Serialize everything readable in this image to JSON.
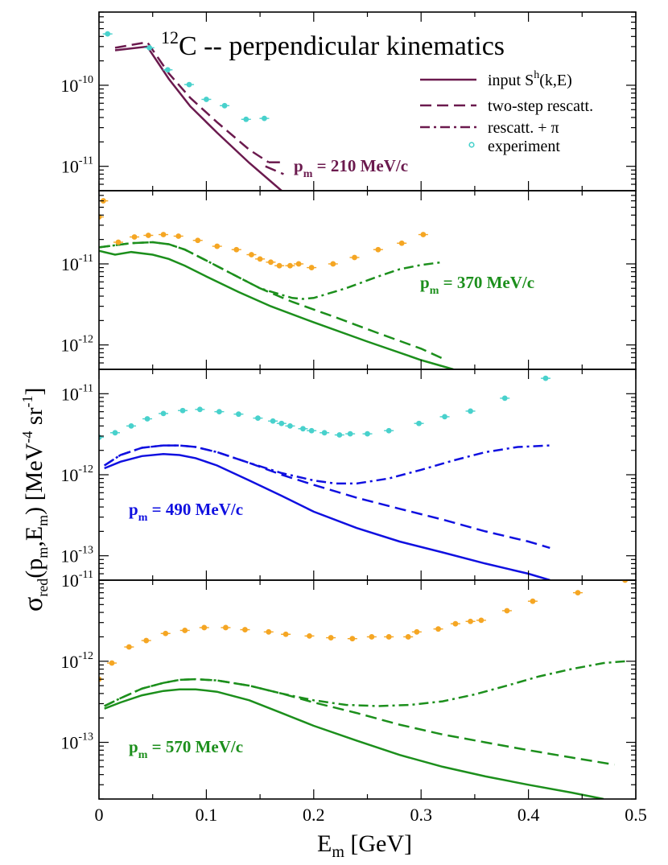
{
  "chart_data": {
    "type": "line",
    "title": {
      "superscript": "12",
      "text": "C -- perpendicular kinematics"
    },
    "xlabel": {
      "main": "E",
      "sub": "m",
      "rest": " [GeV]"
    },
    "ylabel": {
      "sigma": "σ",
      "sub1": "red",
      "mid": "(p",
      "sub2": "m",
      "comma": ",E",
      "sub3": "m",
      "close": ") [MeV",
      "sup1": "-4",
      "sr": " sr",
      "sup2": "-1",
      "end": "]"
    },
    "xlim": [
      0,
      0.5
    ],
    "xticks": [
      0,
      0.1,
      0.2,
      0.3,
      0.4,
      0.5
    ],
    "xtick_labels": [
      "0",
      "0.1",
      "0.2",
      "0.3",
      "0.4",
      "0.5"
    ],
    "legend": {
      "position": "top-right",
      "entries": [
        {
          "style": "solid",
          "label": "input S",
          "sup": "h",
          "after": "(k,E)"
        },
        {
          "style": "dashed",
          "label": "two-step rescatt.",
          "sup": "",
          "after": ""
        },
        {
          "style": "dashdot",
          "label": "rescatt. + π",
          "sup": "",
          "after": ""
        },
        {
          "style": "marker",
          "label": "experiment",
          "sup": "",
          "after": ""
        }
      ]
    },
    "panels": [
      {
        "pm_label": {
          "main": "p",
          "sub": "m",
          "rest": " = 210 MeV/c"
        },
        "color": "#6b1a4e",
        "marker_color": "#48d1cc",
        "ylim": [
          5e-12,
          8e-10
        ],
        "yticks": [
          {
            "value": 1e-10,
            "base": "10",
            "exp": "-10"
          },
          {
            "value": 1e-11,
            "base": "10",
            "exp": "-11"
          }
        ],
        "solid": {
          "x": [
            0.015,
            0.045,
            0.065,
            0.085,
            0.11,
            0.14,
            0.17
          ],
          "y": [
            2.7e-10,
            3e-10,
            1.2e-10,
            5.5e-11,
            2.6e-11,
            1.1e-11,
            5e-12
          ]
        },
        "dashed": {
          "x": [
            0.015,
            0.045,
            0.065,
            0.085,
            0.11,
            0.14,
            0.158
          ],
          "y": [
            2.9e-10,
            3.4e-10,
            1.4e-10,
            7e-11,
            3.5e-11,
            1.6e-11,
            1.12e-11
          ]
        },
        "dashed_tail": {
          "x": [
            0.158,
            0.172
          ],
          "y": [
            1.12e-11,
            1.12e-11
          ]
        },
        "dashed_tail2": {
          "x": [
            0.155,
            0.172
          ],
          "y": [
            1e-11,
            8e-12
          ]
        },
        "dashdot": {
          "x": [],
          "y": []
        },
        "experiment": {
          "x": [
            0.008,
            0.047,
            0.064,
            0.084,
            0.1,
            0.117,
            0.137,
            0.154
          ],
          "y": [
            4.3e-10,
            2.9e-10,
            1.55e-10,
            1.02e-10,
            6.7e-11,
            5.6e-11,
            3.8e-11,
            3.9e-11
          ]
        }
      },
      {
        "pm_label": {
          "main": "p",
          "sub": "m",
          "rest": " = 370 MeV/c"
        },
        "color": "#1c8f1c",
        "marker_color": "#f5a623",
        "ylim": [
          5e-13,
          8e-11
        ],
        "yticks": [
          {
            "value": 1e-11,
            "base": "10",
            "exp": "-11"
          },
          {
            "value": 1e-12,
            "base": "10",
            "exp": "-12"
          }
        ],
        "solid": {
          "x": [
            0.0,
            0.015,
            0.03,
            0.05,
            0.065,
            0.08,
            0.1,
            0.13,
            0.16,
            0.2,
            0.25,
            0.3,
            0.33
          ],
          "y": [
            1.45e-11,
            1.3e-11,
            1.4e-11,
            1.3e-11,
            1.15e-11,
            9.5e-12,
            7e-12,
            4.5e-12,
            3e-12,
            1.9e-12,
            1.1e-12,
            6.5e-13,
            5e-13
          ]
        },
        "dashed": {
          "x": [
            0.0,
            0.03,
            0.05,
            0.065,
            0.08,
            0.1,
            0.12,
            0.15,
            0.18,
            0.22,
            0.26,
            0.3,
            0.32
          ],
          "y": [
            1.6e-11,
            1.8e-11,
            1.85e-11,
            1.75e-11,
            1.5e-11,
            1.1e-11,
            8e-12,
            5e-12,
            3.4e-12,
            2.2e-12,
            1.4e-12,
            9e-13,
            6.8e-13
          ]
        },
        "dashdot": {
          "x": [
            0.0,
            0.03,
            0.05,
            0.065,
            0.08,
            0.1,
            0.12,
            0.15,
            0.18,
            0.19,
            0.2,
            0.23,
            0.26,
            0.28,
            0.3,
            0.32
          ],
          "y": [
            1.6e-11,
            1.8e-11,
            1.85e-11,
            1.75e-11,
            1.5e-11,
            1.1e-11,
            8e-12,
            5e-12,
            3.8e-12,
            3.7e-12,
            3.8e-12,
            5e-12,
            7e-12,
            8.6e-12,
            9.7e-12,
            1.05e-11
          ]
        },
        "experiment": {
          "x": [
            0.004,
            0.0,
            0.018,
            0.033,
            0.046,
            0.06,
            0.074,
            0.092,
            0.11,
            0.128,
            0.142,
            0.15,
            0.16,
            0.168,
            0.178,
            0.186,
            0.198,
            0.218,
            0.238,
            0.26,
            0.282,
            0.302
          ],
          "y": [
            6e-11,
            3.8e-11,
            1.85e-11,
            2.15e-11,
            2.25e-11,
            2.3e-11,
            2.2e-11,
            1.95e-11,
            1.65e-11,
            1.5e-11,
            1.3e-11,
            1.15e-11,
            1.05e-11,
            9.5e-12,
            9.5e-12,
            1e-11,
            9e-12,
            1e-11,
            1.2e-11,
            1.5e-11,
            1.8e-11,
            2.3e-11
          ]
        }
      },
      {
        "pm_label": {
          "main": "p",
          "sub": "m",
          "rest": " = 490 MeV/c"
        },
        "color": "#1010e0",
        "marker_color": "#48d1cc",
        "ylim": [
          5e-14,
          2e-11
        ],
        "yticks": [
          {
            "value": 1e-11,
            "base": "10",
            "exp": "-11"
          },
          {
            "value": 1e-12,
            "base": "10",
            "exp": "-12"
          },
          {
            "value": 1e-13,
            "base": "10",
            "exp": "-13"
          }
        ],
        "solid": {
          "x": [
            0.005,
            0.02,
            0.04,
            0.06,
            0.075,
            0.09,
            0.11,
            0.14,
            0.17,
            0.2,
            0.24,
            0.28,
            0.32,
            0.36,
            0.4,
            0.42
          ],
          "y": [
            1.2e-12,
            1.45e-12,
            1.7e-12,
            1.8e-12,
            1.75e-12,
            1.6e-12,
            1.3e-12,
            8.5e-13,
            5.5e-13,
            3.5e-13,
            2.2e-13,
            1.5e-13,
            1.1e-13,
            8e-14,
            6e-14,
            5e-14
          ]
        },
        "dashed": {
          "x": [
            0.005,
            0.02,
            0.04,
            0.06,
            0.075,
            0.09,
            0.11,
            0.14,
            0.17,
            0.2,
            0.24,
            0.28,
            0.32,
            0.36,
            0.4,
            0.42
          ],
          "y": [
            1.3e-12,
            1.75e-12,
            2.15e-12,
            2.3e-12,
            2.3e-12,
            2.2e-12,
            1.9e-12,
            1.4e-12,
            1e-12,
            7.5e-13,
            5.2e-13,
            3.8e-13,
            2.8e-13,
            2e-13,
            1.5e-13,
            1.25e-13
          ]
        },
        "dashdot": {
          "x": [
            0.005,
            0.02,
            0.04,
            0.06,
            0.075,
            0.09,
            0.11,
            0.14,
            0.17,
            0.2,
            0.22,
            0.24,
            0.27,
            0.3,
            0.33,
            0.36,
            0.39,
            0.42
          ],
          "y": [
            1.3e-12,
            1.75e-12,
            2.15e-12,
            2.3e-12,
            2.3e-12,
            2.2e-12,
            1.9e-12,
            1.4e-12,
            1.05e-12,
            8.5e-13,
            7.8e-13,
            7.8e-13,
            9e-13,
            1.15e-12,
            1.5e-12,
            1.9e-12,
            2.2e-12,
            2.3e-12
          ]
        },
        "experiment": {
          "x": [
            0.0,
            0.015,
            0.03,
            0.045,
            0.06,
            0.078,
            0.094,
            0.112,
            0.13,
            0.148,
            0.162,
            0.17,
            0.178,
            0.19,
            0.198,
            0.21,
            0.224,
            0.234,
            0.25,
            0.27,
            0.298,
            0.322,
            0.346,
            0.378,
            0.416
          ],
          "y": [
            2.9e-12,
            3.3e-12,
            4e-12,
            4.9e-12,
            5.7e-12,
            6.2e-12,
            6.4e-12,
            6e-12,
            5.6e-12,
            5e-12,
            4.6e-12,
            4.3e-12,
            4e-12,
            3.7e-12,
            3.5e-12,
            3.3e-12,
            3.1e-12,
            3.2e-12,
            3.2e-12,
            3.5e-12,
            4.3e-12,
            5.2e-12,
            6.1e-12,
            8.8e-12,
            1.55e-11
          ]
        }
      },
      {
        "pm_label": {
          "main": "p",
          "sub": "m",
          "rest": " = 570 MeV/c"
        },
        "color": "#1c8f1c",
        "marker_color": "#f5a623",
        "ylim": [
          2e-14,
          1e-11
        ],
        "yticks": [
          {
            "value": 1e-11,
            "base": "10",
            "exp": "-11"
          },
          {
            "value": 1e-12,
            "base": "10",
            "exp": "-12"
          },
          {
            "value": 1e-13,
            "base": "10",
            "exp": "-13"
          }
        ],
        "solid": {
          "x": [
            0.005,
            0.02,
            0.04,
            0.06,
            0.075,
            0.09,
            0.11,
            0.14,
            0.17,
            0.2,
            0.24,
            0.28,
            0.32,
            0.36,
            0.4,
            0.44,
            0.47
          ],
          "y": [
            2.6e-13,
            3.1e-13,
            3.8e-13,
            4.3e-13,
            4.5e-13,
            4.5e-13,
            4.2e-13,
            3.3e-13,
            2.3e-13,
            1.6e-13,
            1.05e-13,
            7e-14,
            5e-14,
            3.8e-14,
            3e-14,
            2.4e-14,
            2e-14
          ]
        },
        "dashed": {
          "x": [
            0.005,
            0.02,
            0.04,
            0.06,
            0.075,
            0.09,
            0.11,
            0.14,
            0.17,
            0.2,
            0.24,
            0.28,
            0.32,
            0.36,
            0.4,
            0.44,
            0.48
          ],
          "y": [
            2.8e-13,
            3.5e-13,
            4.6e-13,
            5.4e-13,
            5.9e-13,
            6e-13,
            5.8e-13,
            5e-13,
            4e-13,
            3.1e-13,
            2.3e-13,
            1.65e-13,
            1.25e-13,
            1e-13,
            8e-14,
            6.5e-14,
            5.3e-14
          ]
        },
        "dashdot": {
          "x": [
            0.005,
            0.02,
            0.04,
            0.06,
            0.075,
            0.09,
            0.11,
            0.14,
            0.17,
            0.2,
            0.23,
            0.26,
            0.29,
            0.32,
            0.35,
            0.38,
            0.41,
            0.44,
            0.47,
            0.49
          ],
          "y": [
            2.8e-13,
            3.5e-13,
            4.6e-13,
            5.4e-13,
            5.9e-13,
            6e-13,
            5.8e-13,
            5e-13,
            4e-13,
            3.3e-13,
            2.9e-13,
            2.8e-13,
            2.9e-13,
            3.2e-13,
            3.9e-13,
            5e-13,
            6.5e-13,
            8e-13,
            9.5e-13,
            1e-12
          ]
        },
        "experiment": {
          "x": [
            0.0,
            0.012,
            0.028,
            0.044,
            0.062,
            0.08,
            0.098,
            0.118,
            0.136,
            0.158,
            0.174,
            0.196,
            0.216,
            0.236,
            0.254,
            0.27,
            0.288,
            0.296,
            0.316,
            0.332,
            0.346,
            0.356,
            0.38,
            0.404,
            0.446,
            0.49
          ],
          "y": [
            6e-13,
            9.5e-13,
            1.5e-12,
            1.8e-12,
            2.2e-12,
            2.4e-12,
            2.6e-12,
            2.6e-12,
            2.45e-12,
            2.3e-12,
            2.15e-12,
            2.05e-12,
            1.95e-12,
            1.9e-12,
            2e-12,
            2e-12,
            2e-12,
            2.3e-12,
            2.5e-12,
            2.9e-12,
            3.1e-12,
            3.2e-12,
            4.2e-12,
            5.5e-12,
            7e-12,
            1e-11
          ]
        }
      }
    ]
  }
}
